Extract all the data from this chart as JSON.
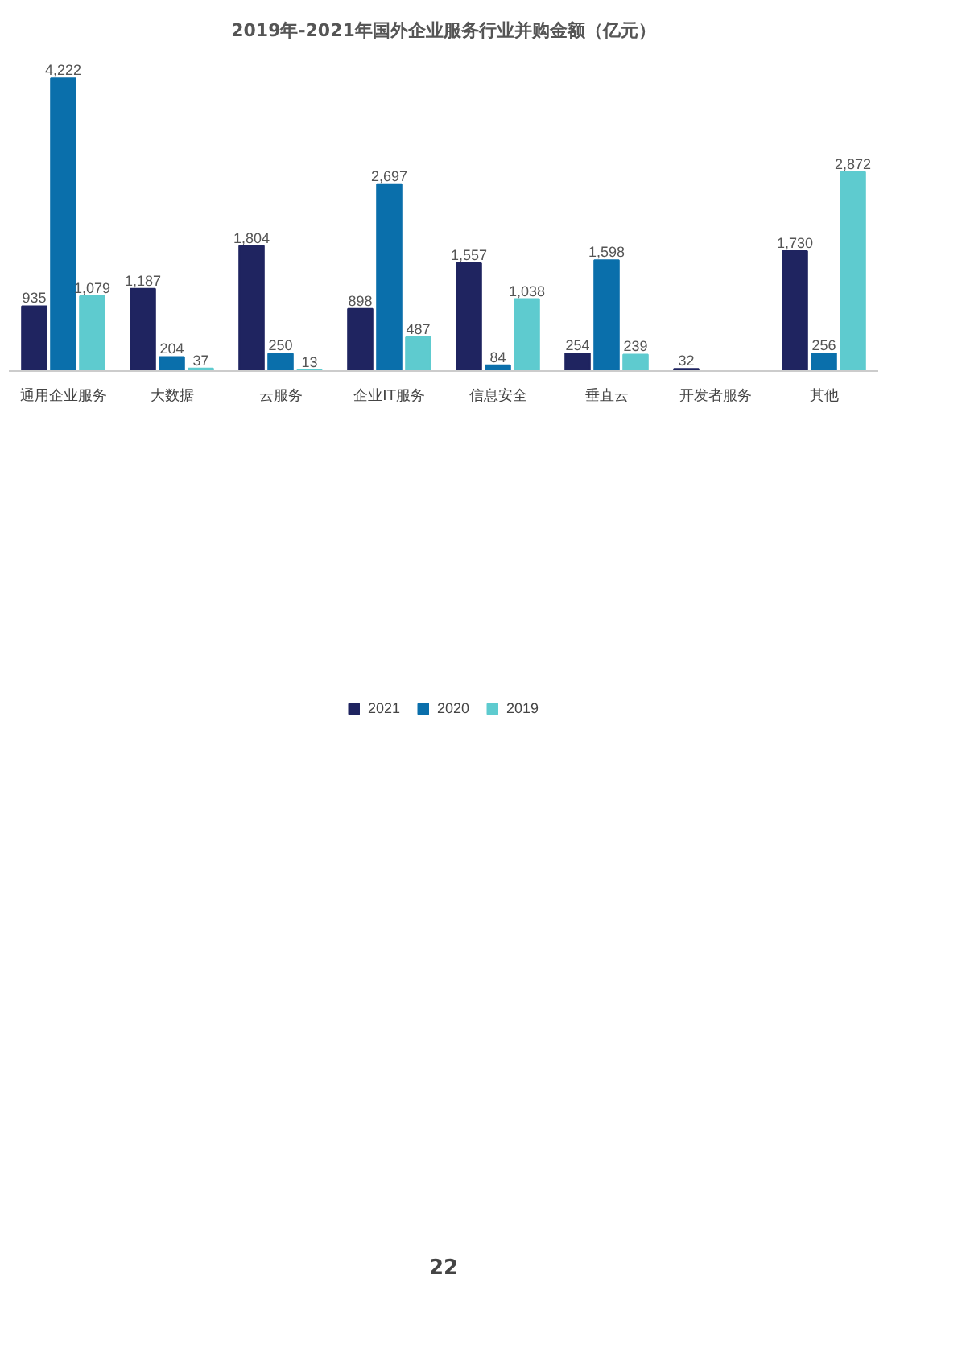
{
  "chart_data": {
    "type": "bar",
    "title": "2019年-2021年国外企业服务行业并购金额（亿元）",
    "categories": [
      "通用企业服务",
      "大数据",
      "云服务",
      "企业IT服务",
      "信息安全",
      "垂直云",
      "开发者服务",
      "其他"
    ],
    "series": [
      {
        "name": "2021",
        "color": "#1f2460",
        "values": [
          935,
          1187,
          1804,
          898,
          1557,
          254,
          32,
          1730
        ],
        "value_labels": [
          "935",
          "1,187",
          "1,804",
          "898",
          "1,557",
          "254",
          "32",
          "1,730"
        ]
      },
      {
        "name": "2020",
        "color": "#0a6fab",
        "values": [
          4222,
          204,
          250,
          2697,
          84,
          1598,
          null,
          256
        ],
        "value_labels": [
          "4,222",
          "204",
          "250",
          "2,697",
          "84",
          "1,598",
          null,
          "256"
        ]
      },
      {
        "name": "2019",
        "color": "#5ecbcf",
        "values": [
          1079,
          37,
          13,
          487,
          1038,
          239,
          null,
          2872
        ],
        "value_labels": [
          "1,079",
          "37",
          "13",
          "487",
          "1,038",
          "239",
          null,
          "2,872"
        ]
      }
    ],
    "legend": "bottom",
    "grid": false,
    "tick_labels": "x",
    "annotations": [
      "22"
    ]
  }
}
